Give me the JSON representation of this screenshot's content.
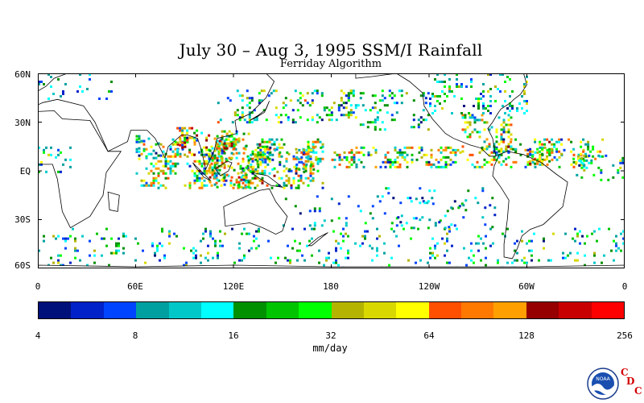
{
  "title": "July 30 – Aug 3, 1995 SSM/I Rainfall",
  "subtitle": "Ferriday Algorithm",
  "lat_labels": [
    "60N",
    "30N",
    "EQ",
    "30S",
    "60S"
  ],
  "lat_values": [
    60,
    30,
    0,
    -30,
    -60
  ],
  "lon_labels": [
    "0",
    "60E",
    "120E",
    "180",
    "120W",
    "60W",
    "0"
  ],
  "lon_values": [
    0,
    60,
    120,
    180,
    240,
    300,
    360
  ],
  "colorbar": {
    "colors": [
      "#00107a",
      "#0022c8",
      "#0044ff",
      "#00a0a0",
      "#00c8c8",
      "#00ffff",
      "#009000",
      "#00c400",
      "#00ff00",
      "#b4b400",
      "#d8d800",
      "#ffff00",
      "#ff5000",
      "#ff7800",
      "#ffa000",
      "#960000",
      "#c80000",
      "#ff0000"
    ],
    "tick_labels": [
      "4",
      "8",
      "16",
      "32",
      "64",
      "128",
      "256"
    ],
    "units": "mm/day"
  },
  "logo": {
    "text": "NOAA",
    "letters": [
      "C",
      "D",
      "C"
    ]
  },
  "rain_regions": [
    {
      "lon": [
        60,
        175
      ],
      "lat": [
        -10,
        20
      ],
      "d": 0.55,
      "i": 0.75
    },
    {
      "lon": [
        85,
        105
      ],
      "lat": [
        10,
        27
      ],
      "d": 0.6,
      "i": 0.85
    },
    {
      "lon": [
        105,
        130
      ],
      "lat": [
        -10,
        25
      ],
      "d": 0.6,
      "i": 0.8
    },
    {
      "lon": [
        130,
        175
      ],
      "lat": [
        0,
        15
      ],
      "d": 0.45,
      "i": 0.6
    },
    {
      "lon": [
        180,
        335
      ],
      "lat": [
        3,
        15
      ],
      "d": 0.5,
      "i": 0.7
    },
    {
      "lon": [
        260,
        290
      ],
      "lat": [
        12,
        35
      ],
      "d": 0.45,
      "i": 0.7
    },
    {
      "lon": [
        285,
        350
      ],
      "lat": [
        5,
        20
      ],
      "d": 0.4,
      "i": 0.7
    },
    {
      "lon": [
        110,
        200
      ],
      "lat": [
        30,
        50
      ],
      "d": 0.35,
      "i": 0.55
    },
    {
      "lon": [
        190,
        240
      ],
      "lat": [
        25,
        50
      ],
      "d": 0.25,
      "i": 0.45
    },
    {
      "lon": [
        240,
        300
      ],
      "lat": [
        35,
        60
      ],
      "d": 0.3,
      "i": 0.5
    },
    {
      "lon": [
        0,
        360
      ],
      "lat": [
        -60,
        -35
      ],
      "d": 0.18,
      "i": 0.45
    },
    {
      "lon": [
        0,
        20
      ],
      "lat": [
        0,
        15
      ],
      "d": 0.3,
      "i": 0.5
    },
    {
      "lon": [
        330,
        360
      ],
      "lat": [
        -5,
        10
      ],
      "d": 0.3,
      "i": 0.5
    },
    {
      "lon": [
        60,
        75
      ],
      "lat": [
        8,
        22
      ],
      "d": 0.25,
      "i": 0.4
    },
    {
      "lon": [
        150,
        260
      ],
      "lat": [
        -35,
        -15
      ],
      "d": 0.12,
      "i": 0.35
    },
    {
      "lon": [
        0,
        45
      ],
      "lat": [
        45,
        60
      ],
      "d": 0.18,
      "i": 0.35
    },
    {
      "lon": [
        210,
        280
      ],
      "lat": [
        -35,
        -10
      ],
      "d": 0.1,
      "i": 0.3
    }
  ],
  "land": [
    [
      [
        -10,
        36
      ],
      [
        10,
        37
      ],
      [
        15,
        32
      ],
      [
        32,
        31
      ],
      [
        43,
        12
      ],
      [
        51,
        12
      ],
      [
        42,
        -1
      ],
      [
        40,
        -15
      ],
      [
        32,
        -28
      ],
      [
        20,
        -35
      ],
      [
        15,
        -25
      ],
      [
        12,
        -5
      ],
      [
        9,
        4
      ],
      [
        -8,
        4
      ],
      [
        -17,
        15
      ],
      [
        -17,
        22
      ],
      [
        -10,
        36
      ]
    ],
    [
      [
        -10,
        36
      ],
      [
        -9,
        43
      ],
      [
        -2,
        48
      ],
      [
        5,
        52
      ],
      [
        10,
        57
      ],
      [
        18,
        60
      ],
      [
        30,
        60
      ],
      [
        60,
        60
      ],
      [
        100,
        60
      ],
      [
        140,
        60
      ],
      [
        145,
        55
      ],
      [
        140,
        45
      ],
      [
        130,
        35
      ],
      [
        121,
        31
      ],
      [
        122,
        23
      ],
      [
        110,
        20
      ],
      [
        108,
        12
      ],
      [
        103,
        1
      ],
      [
        100,
        14
      ],
      [
        98,
        20
      ],
      [
        92,
        22
      ],
      [
        88,
        22
      ],
      [
        80,
        15
      ],
      [
        78,
        8
      ],
      [
        72,
        20
      ],
      [
        67,
        25
      ],
      [
        57,
        25
      ],
      [
        55,
        18
      ],
      [
        43,
        12
      ],
      [
        35,
        30
      ],
      [
        28,
        40
      ],
      [
        12,
        44
      ],
      [
        3,
        42
      ],
      [
        -10,
        36
      ]
    ],
    [
      [
        114,
        -22
      ],
      [
        115,
        -34
      ],
      [
        130,
        -32
      ],
      [
        138,
        -35
      ],
      [
        146,
        -39
      ],
      [
        150,
        -37
      ],
      [
        153,
        -28
      ],
      [
        146,
        -19
      ],
      [
        142,
        -11
      ],
      [
        136,
        -12
      ],
      [
        129,
        -15
      ],
      [
        114,
        -22
      ]
    ],
    [
      [
        195,
        60
      ],
      [
        195,
        57
      ],
      [
        205,
        58
      ],
      [
        220,
        60
      ],
      [
        228,
        55
      ],
      [
        236,
        48
      ],
      [
        237,
        40
      ],
      [
        242,
        32
      ],
      [
        250,
        23
      ],
      [
        255,
        20
      ],
      [
        265,
        16
      ],
      [
        272,
        14
      ],
      [
        277,
        9
      ],
      [
        281,
        9
      ],
      [
        279,
        20
      ],
      [
        276,
        26
      ],
      [
        279,
        30
      ],
      [
        282,
        35
      ],
      [
        284,
        38
      ],
      [
        290,
        42
      ],
      [
        292,
        44
      ],
      [
        296,
        47
      ],
      [
        300,
        53
      ],
      [
        298,
        60
      ],
      [
        195,
        60
      ]
    ],
    [
      [
        283,
        10
      ],
      [
        288,
        12
      ],
      [
        298,
        10
      ],
      [
        309,
        5
      ],
      [
        318,
        -2
      ],
      [
        325,
        -7
      ],
      [
        322,
        -22
      ],
      [
        310,
        -33
      ],
      [
        302,
        -36
      ],
      [
        297,
        -40
      ],
      [
        294,
        -48
      ],
      [
        291,
        -54
      ],
      [
        286,
        -53
      ],
      [
        286,
        -45
      ],
      [
        288,
        -30
      ],
      [
        289,
        -18
      ],
      [
        284,
        -10
      ],
      [
        279,
        -3
      ],
      [
        280,
        3
      ],
      [
        283,
        10
      ]
    ],
    [
      [
        95,
        5
      ],
      [
        100,
        0
      ],
      [
        106,
        -6
      ],
      [
        102,
        -4
      ],
      [
        97,
        2
      ],
      [
        95,
        5
      ]
    ],
    [
      [
        109,
        1
      ],
      [
        112,
        -3
      ],
      [
        117,
        0
      ],
      [
        119,
        5
      ],
      [
        116,
        6
      ],
      [
        110,
        2
      ],
      [
        109,
        1
      ]
    ],
    [
      [
        131,
        -1
      ],
      [
        141,
        -3
      ],
      [
        150,
        -10
      ],
      [
        143,
        -9
      ],
      [
        135,
        -4
      ],
      [
        131,
        -1
      ]
    ],
    [
      [
        130,
        31
      ],
      [
        135,
        34
      ],
      [
        140,
        38
      ],
      [
        142,
        43
      ],
      [
        139,
        36
      ],
      [
        134,
        33
      ],
      [
        130,
        31
      ]
    ],
    [
      [
        43,
        -13
      ],
      [
        50,
        -15
      ],
      [
        49,
        -25
      ],
      [
        44,
        -24
      ],
      [
        43,
        -13
      ]
    ],
    [
      [
        166,
        -46
      ],
      [
        172,
        -41
      ],
      [
        178,
        -38
      ],
      [
        174,
        -41
      ],
      [
        168,
        -46
      ],
      [
        166,
        -46
      ]
    ],
    [
      [
        307,
        60
      ],
      [
        318,
        60
      ],
      [
        330,
        60
      ],
      [
        320,
        60
      ],
      [
        307,
        60
      ]
    ],
    [
      [
        0,
        -60
      ],
      [
        60,
        -60
      ],
      [
        120,
        -60
      ],
      [
        180,
        -60
      ],
      [
        240,
        -60
      ],
      [
        300,
        -60
      ],
      [
        360,
        -60
      ],
      [
        360,
        -58
      ],
      [
        300,
        -59
      ],
      [
        240,
        -59
      ],
      [
        180,
        -59
      ],
      [
        120,
        -58
      ],
      [
        60,
        -59
      ],
      [
        0,
        -58
      ],
      [
        0,
        -60
      ]
    ]
  ]
}
